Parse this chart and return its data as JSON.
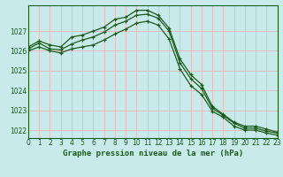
{
  "title": "Graphe pression niveau de la mer (hPa)",
  "background_color": "#c8eaea",
  "grid_color_major": "#e8b8b8",
  "grid_color_minor": "#e8b8b8",
  "line_color": "#1a5c1a",
  "hours": [
    0,
    1,
    2,
    3,
    4,
    5,
    6,
    7,
    8,
    9,
    10,
    11,
    12,
    13,
    14,
    15,
    16,
    17,
    18,
    19,
    20,
    21,
    22,
    23
  ],
  "line_max": [
    1026.2,
    1026.5,
    1026.3,
    1026.2,
    1026.7,
    1026.8,
    1027.0,
    1027.2,
    1027.6,
    1027.7,
    1028.05,
    1028.05,
    1027.8,
    1027.15,
    1025.6,
    1024.8,
    1024.3,
    1023.2,
    1022.8,
    1022.4,
    1022.2,
    1022.2,
    1022.05,
    1021.9
  ],
  "line_avg": [
    1026.1,
    1026.4,
    1026.1,
    1026.05,
    1026.35,
    1026.55,
    1026.7,
    1026.95,
    1027.3,
    1027.5,
    1027.8,
    1027.85,
    1027.65,
    1027.0,
    1025.4,
    1024.6,
    1024.1,
    1023.1,
    1022.75,
    1022.35,
    1022.1,
    1022.1,
    1021.95,
    1021.85
  ],
  "line_min": [
    1026.0,
    1026.2,
    1026.0,
    1025.9,
    1026.1,
    1026.2,
    1026.3,
    1026.55,
    1026.85,
    1027.1,
    1027.4,
    1027.5,
    1027.3,
    1026.6,
    1025.1,
    1024.25,
    1023.8,
    1022.95,
    1022.65,
    1022.2,
    1022.0,
    1022.0,
    1021.85,
    1021.75
  ],
  "ylim": [
    1021.6,
    1028.3
  ],
  "yticks": [
    1022,
    1023,
    1024,
    1025,
    1026,
    1027
  ],
  "xlim": [
    0,
    23
  ],
  "xticks": [
    0,
    1,
    2,
    3,
    4,
    5,
    6,
    7,
    8,
    9,
    10,
    11,
    12,
    13,
    14,
    15,
    16,
    17,
    18,
    19,
    20,
    21,
    22,
    23
  ],
  "tick_fontsize": 5.5,
  "label_fontsize": 6.5,
  "line_width": 0.9,
  "marker_size": 3.5
}
